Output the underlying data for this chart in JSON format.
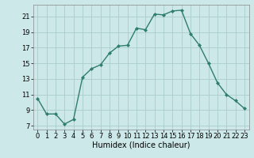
{
  "x": [
    0,
    1,
    2,
    3,
    4,
    5,
    6,
    7,
    8,
    9,
    10,
    11,
    12,
    13,
    14,
    15,
    16,
    17,
    18,
    19,
    20,
    21,
    22,
    23
  ],
  "y": [
    10.5,
    8.5,
    8.5,
    7.2,
    7.8,
    13.2,
    14.3,
    14.8,
    16.3,
    17.2,
    17.3,
    19.5,
    19.3,
    21.3,
    21.2,
    21.7,
    21.8,
    18.8,
    17.3,
    15.0,
    12.5,
    11.0,
    10.2,
    9.2
  ],
  "line_color": "#2e7d6e",
  "marker": "D",
  "marker_size": 2.2,
  "bg_color": "#cce8e8",
  "grid_color": "#aacccc",
  "xlabel": "Humidex (Indice chaleur)",
  "xlim": [
    -0.5,
    23.5
  ],
  "ylim": [
    6.5,
    22.5
  ],
  "yticks": [
    7,
    9,
    11,
    13,
    15,
    17,
    19,
    21
  ],
  "xticks": [
    0,
    1,
    2,
    3,
    4,
    5,
    6,
    7,
    8,
    9,
    10,
    11,
    12,
    13,
    14,
    15,
    16,
    17,
    18,
    19,
    20,
    21,
    22,
    23
  ],
  "xlabel_fontsize": 7,
  "tick_fontsize": 6,
  "line_width": 1.0
}
